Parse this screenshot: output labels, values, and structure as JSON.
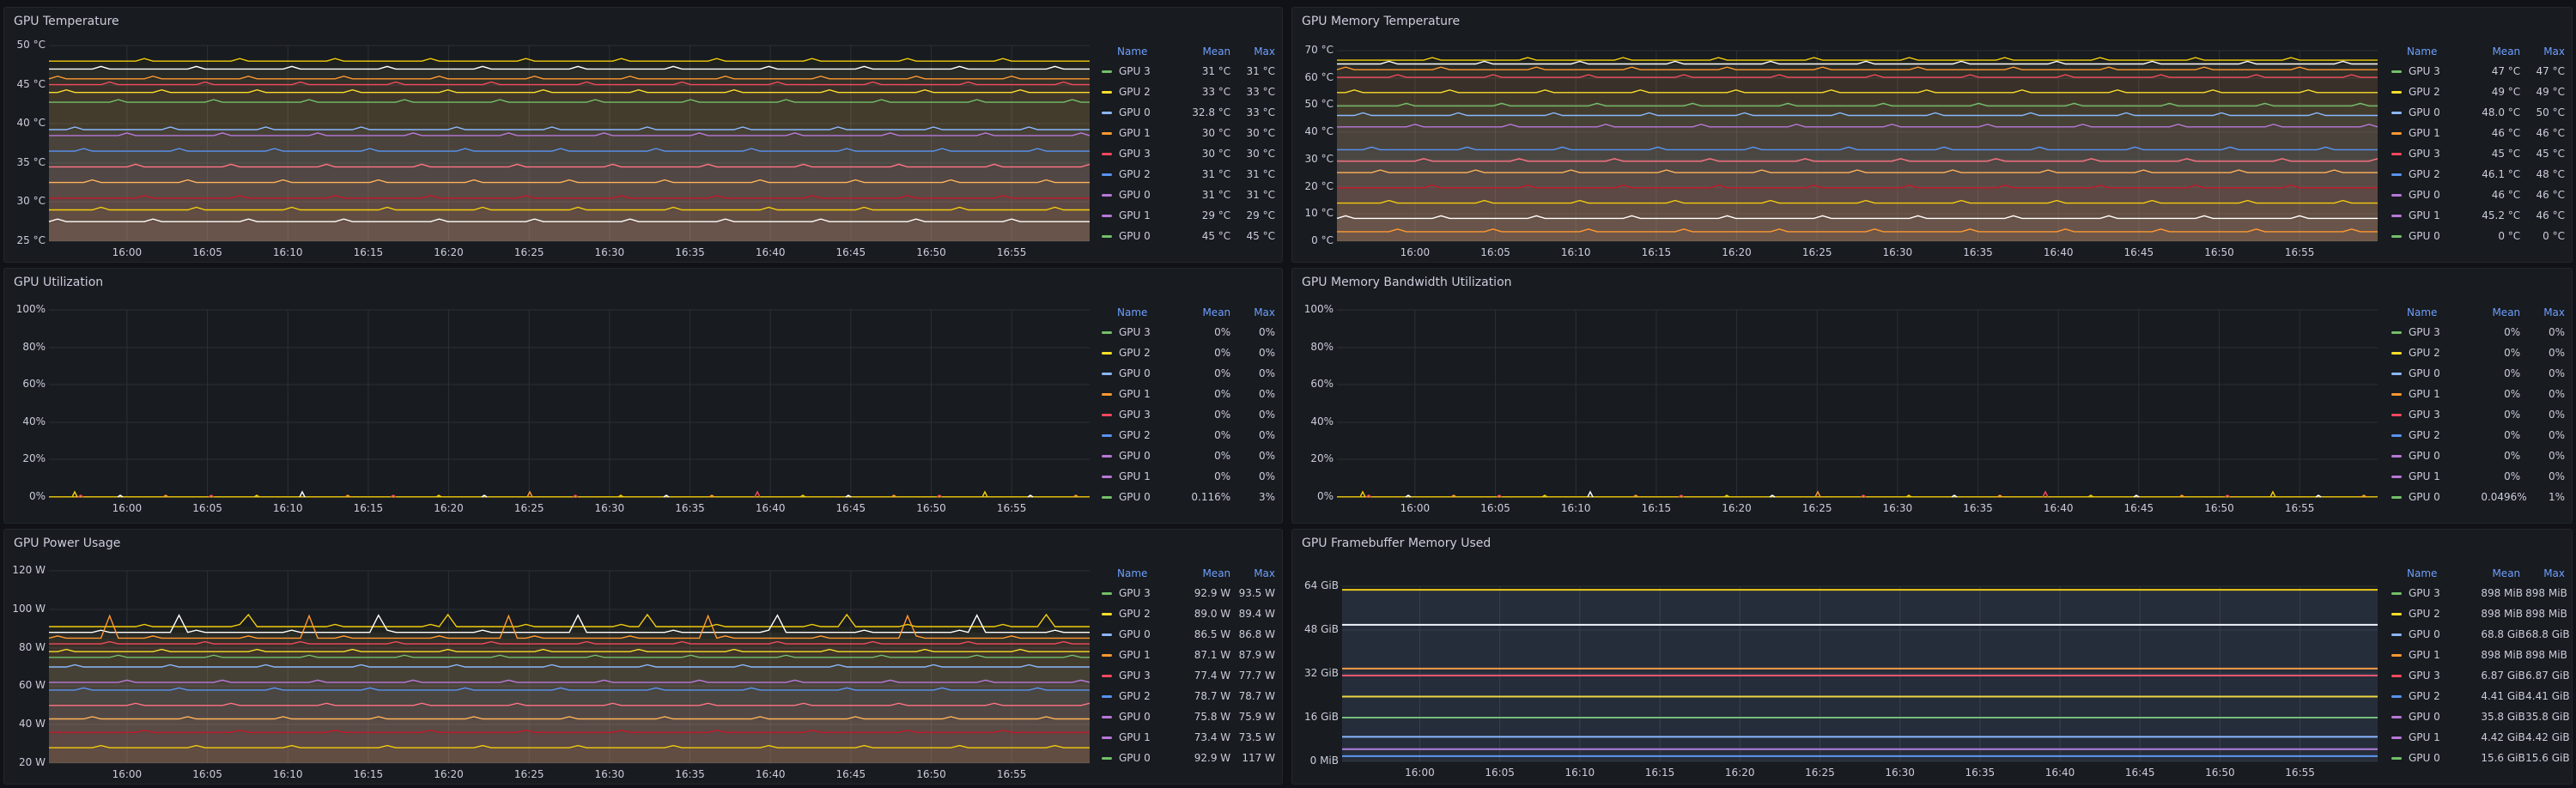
{
  "colors": {
    "GPU 3": "#73bf69",
    "GPU 2": "#fade2a",
    "GPU 0": "#8ab8ff",
    "GPU 1": "#ff9830",
    "red": "#f2495c",
    "blue": "#5794f2",
    "purple": "#b877d9"
  },
  "legend_headers": {
    "name": "Name",
    "mean": "Mean",
    "max": "Max"
  },
  "x_ticks": [
    "16:00",
    "16:05",
    "16:10",
    "16:15",
    "16:20",
    "16:25",
    "16:30",
    "16:35",
    "16:40",
    "16:45",
    "16:50",
    "16:55"
  ],
  "panels": [
    {
      "id": "gpu-temperature",
      "title": "GPU Temperature",
      "y_ticks": [
        "50 °C",
        "45 °C",
        "40 °C",
        "35 °C",
        "30 °C",
        "25 °C"
      ],
      "legend": [
        {
          "name": "GPU 3",
          "color": "#73bf69",
          "mean": "31 °C",
          "max": "31 °C"
        },
        {
          "name": "GPU 2",
          "color": "#fade2a",
          "mean": "33 °C",
          "max": "33 °C"
        },
        {
          "name": "GPU 0",
          "color": "#8ab8ff",
          "mean": "32.8 °C",
          "max": "33 °C"
        },
        {
          "name": "GPU 1",
          "color": "#ff9830",
          "mean": "30 °C",
          "max": "30 °C"
        },
        {
          "name": "GPU 3",
          "color": "#f2495c",
          "mean": "30 °C",
          "max": "30 °C"
        },
        {
          "name": "GPU 2",
          "color": "#5794f2",
          "mean": "31 °C",
          "max": "31 °C"
        },
        {
          "name": "GPU 0",
          "color": "#b877d9",
          "mean": "31 °C",
          "max": "31 °C"
        },
        {
          "name": "GPU 1",
          "color": "#b877d9",
          "mean": "29 °C",
          "max": "29 °C"
        },
        {
          "name": "GPU 0",
          "color": "#73bf69",
          "mean": "45 °C",
          "max": "45 °C"
        }
      ]
    },
    {
      "id": "gpu-memory-temperature",
      "title": "GPU Memory Temperature",
      "y_ticks": [
        "70 °C",
        "60 °C",
        "50 °C",
        "40 °C",
        "30 °C",
        "20 °C",
        "10 °C",
        "0 °C"
      ],
      "legend": [
        {
          "name": "GPU 3",
          "color": "#73bf69",
          "mean": "47 °C",
          "max": "47 °C"
        },
        {
          "name": "GPU 2",
          "color": "#fade2a",
          "mean": "49 °C",
          "max": "49 °C"
        },
        {
          "name": "GPU 0",
          "color": "#8ab8ff",
          "mean": "48.0 °C",
          "max": "50 °C"
        },
        {
          "name": "GPU 1",
          "color": "#ff9830",
          "mean": "46 °C",
          "max": "46 °C"
        },
        {
          "name": "GPU 3",
          "color": "#f2495c",
          "mean": "45 °C",
          "max": "45 °C"
        },
        {
          "name": "GPU 2",
          "color": "#5794f2",
          "mean": "46.1 °C",
          "max": "48 °C"
        },
        {
          "name": "GPU 0",
          "color": "#b877d9",
          "mean": "46 °C",
          "max": "46 °C"
        },
        {
          "name": "GPU 1",
          "color": "#b877d9",
          "mean": "45.2 °C",
          "max": "46 °C"
        },
        {
          "name": "GPU 0",
          "color": "#73bf69",
          "mean": "0 °C",
          "max": "0 °C"
        }
      ]
    },
    {
      "id": "gpu-utilization",
      "title": "GPU Utilization",
      "y_ticks": [
        "100%",
        "80%",
        "60%",
        "40%",
        "20%",
        "0%"
      ],
      "legend": [
        {
          "name": "GPU 3",
          "color": "#73bf69",
          "mean": "0%",
          "max": "0%"
        },
        {
          "name": "GPU 2",
          "color": "#fade2a",
          "mean": "0%",
          "max": "0%"
        },
        {
          "name": "GPU 0",
          "color": "#8ab8ff",
          "mean": "0%",
          "max": "0%"
        },
        {
          "name": "GPU 1",
          "color": "#ff9830",
          "mean": "0%",
          "max": "0%"
        },
        {
          "name": "GPU 3",
          "color": "#f2495c",
          "mean": "0%",
          "max": "0%"
        },
        {
          "name": "GPU 2",
          "color": "#5794f2",
          "mean": "0%",
          "max": "0%"
        },
        {
          "name": "GPU 0",
          "color": "#b877d9",
          "mean": "0%",
          "max": "0%"
        },
        {
          "name": "GPU 1",
          "color": "#b877d9",
          "mean": "0%",
          "max": "0%"
        },
        {
          "name": "GPU 0",
          "color": "#73bf69",
          "mean": "0.116%",
          "max": "3%"
        }
      ]
    },
    {
      "id": "gpu-memory-bandwidth",
      "title": "GPU Memory Bandwidth Utilization",
      "y_ticks": [
        "100%",
        "80%",
        "60%",
        "40%",
        "20%",
        "0%"
      ],
      "legend": [
        {
          "name": "GPU 3",
          "color": "#73bf69",
          "mean": "0%",
          "max": "0%"
        },
        {
          "name": "GPU 2",
          "color": "#fade2a",
          "mean": "0%",
          "max": "0%"
        },
        {
          "name": "GPU 0",
          "color": "#8ab8ff",
          "mean": "0%",
          "max": "0%"
        },
        {
          "name": "GPU 1",
          "color": "#ff9830",
          "mean": "0%",
          "max": "0%"
        },
        {
          "name": "GPU 3",
          "color": "#f2495c",
          "mean": "0%",
          "max": "0%"
        },
        {
          "name": "GPU 2",
          "color": "#5794f2",
          "mean": "0%",
          "max": "0%"
        },
        {
          "name": "GPU 0",
          "color": "#b877d9",
          "mean": "0%",
          "max": "0%"
        },
        {
          "name": "GPU 1",
          "color": "#b877d9",
          "mean": "0%",
          "max": "0%"
        },
        {
          "name": "GPU 0",
          "color": "#73bf69",
          "mean": "0.0496%",
          "max": "1%"
        }
      ]
    },
    {
      "id": "gpu-power-usage",
      "title": "GPU Power Usage",
      "y_ticks": [
        "120 W",
        "100 W",
        "80 W",
        "60 W",
        "40 W",
        "20 W"
      ],
      "legend": [
        {
          "name": "GPU 3",
          "color": "#73bf69",
          "mean": "92.9 W",
          "max": "93.5 W"
        },
        {
          "name": "GPU 2",
          "color": "#fade2a",
          "mean": "89.0 W",
          "max": "89.4 W"
        },
        {
          "name": "GPU 0",
          "color": "#8ab8ff",
          "mean": "86.5 W",
          "max": "86.8 W"
        },
        {
          "name": "GPU 1",
          "color": "#ff9830",
          "mean": "87.1 W",
          "max": "87.9 W"
        },
        {
          "name": "GPU 3",
          "color": "#f2495c",
          "mean": "77.4 W",
          "max": "77.7 W"
        },
        {
          "name": "GPU 2",
          "color": "#5794f2",
          "mean": "78.7 W",
          "max": "78.7 W"
        },
        {
          "name": "GPU 0",
          "color": "#b877d9",
          "mean": "75.8 W",
          "max": "75.9 W"
        },
        {
          "name": "GPU 1",
          "color": "#b877d9",
          "mean": "73.4 W",
          "max": "73.5 W"
        },
        {
          "name": "GPU 0",
          "color": "#73bf69",
          "mean": "92.9 W",
          "max": "117 W"
        }
      ]
    },
    {
      "id": "gpu-framebuffer-memory",
      "title": "GPU Framebuffer Memory Used",
      "y_ticks": [
        "64 GiB",
        "48 GiB",
        "32 GiB",
        "16 GiB",
        "0 MiB"
      ],
      "legend": [
        {
          "name": "GPU 3",
          "color": "#73bf69",
          "mean": "898 MiB",
          "max": "898 MiB"
        },
        {
          "name": "GPU 2",
          "color": "#fade2a",
          "mean": "898 MiB",
          "max": "898 MiB"
        },
        {
          "name": "GPU 0",
          "color": "#8ab8ff",
          "mean": "68.8 GiB",
          "max": "68.8 GiB"
        },
        {
          "name": "GPU 1",
          "color": "#ff9830",
          "mean": "898 MiB",
          "max": "898 MiB"
        },
        {
          "name": "GPU 3",
          "color": "#f2495c",
          "mean": "6.87 GiB",
          "max": "6.87 GiB"
        },
        {
          "name": "GPU 2",
          "color": "#5794f2",
          "mean": "4.41 GiB",
          "max": "4.41 GiB"
        },
        {
          "name": "GPU 0",
          "color": "#b877d9",
          "mean": "35.8 GiB",
          "max": "35.8 GiB"
        },
        {
          "name": "GPU 1",
          "color": "#b877d9",
          "mean": "4.42 GiB",
          "max": "4.42 GiB"
        },
        {
          "name": "GPU 0",
          "color": "#73bf69",
          "mean": "15.6 GiB",
          "max": "15.6 GiB"
        }
      ]
    }
  ]
}
